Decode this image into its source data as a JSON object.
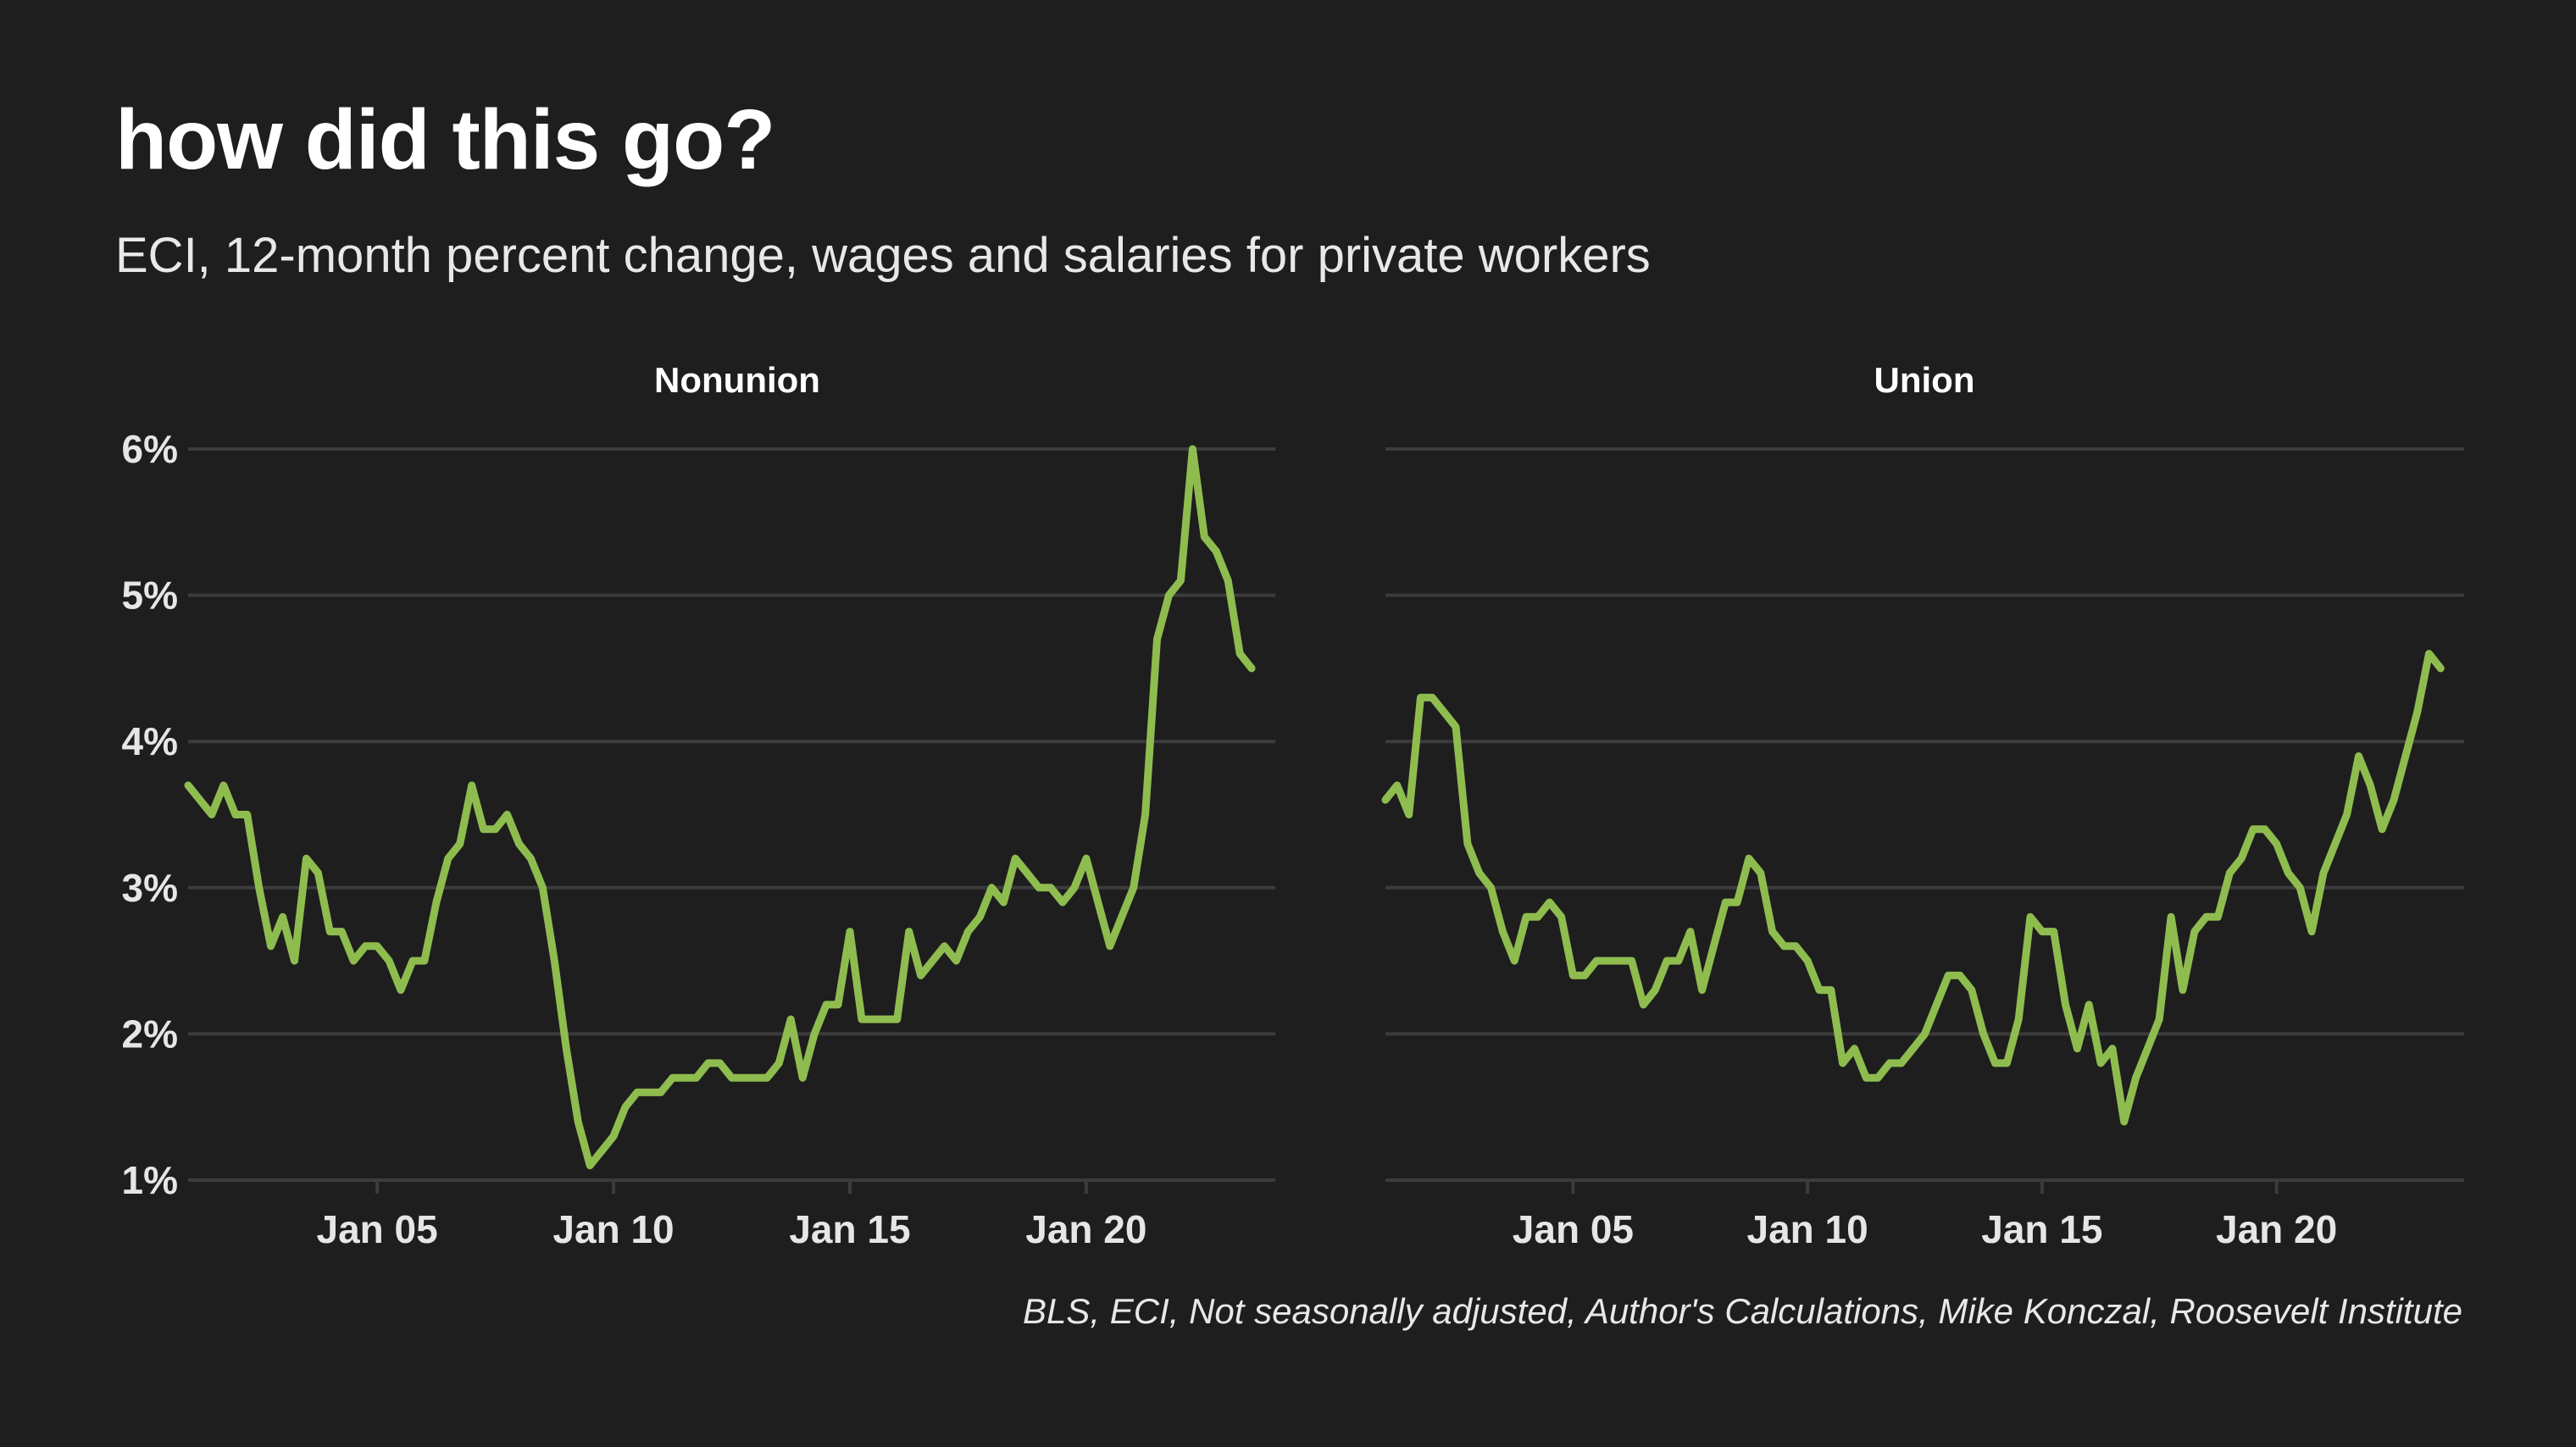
{
  "title": "how did this go?",
  "subtitle": "ECI, 12-month percent change, wages and salaries for private workers",
  "caption": "BLS, ECI, Not seasonally adjusted, Author's Calculations, Mike Konczal, Roosevelt Institute",
  "colors": {
    "background": "#1e1e1e",
    "line": "#8fbc4f",
    "grid": "#3c3c3c",
    "text": "#ffffff"
  },
  "chart_data": [
    {
      "type": "line",
      "title": "Nonunion",
      "xlabel": "",
      "ylabel": "",
      "x_start": 2001.0,
      "x_step": 0.25,
      "ylim": [
        1,
        6
      ],
      "xlim": [
        2001,
        2024
      ],
      "yticks": [
        1,
        2,
        3,
        4,
        5,
        6
      ],
      "ytick_labels": [
        "1%",
        "2%",
        "3%",
        "4%",
        "5%",
        "6%"
      ],
      "xticks": [
        2005,
        2010,
        2015,
        2020
      ],
      "xtick_labels": [
        "Jan 05",
        "Jan 10",
        "Jan 15",
        "Jan 20"
      ],
      "grid": true,
      "series": [
        {
          "values": [
            3.7,
            3.6,
            3.5,
            3.7,
            3.5,
            3.5,
            3.0,
            2.6,
            2.8,
            2.5,
            3.2,
            3.1,
            2.7,
            2.7,
            2.5,
            2.6,
            2.6,
            2.5,
            2.3,
            2.5,
            2.5,
            2.9,
            3.2,
            3.3,
            3.7,
            3.4,
            3.4,
            3.5,
            3.3,
            3.2,
            3.0,
            2.5,
            1.9,
            1.4,
            1.1,
            1.2,
            1.3,
            1.5,
            1.6,
            1.6,
            1.6,
            1.7,
            1.7,
            1.7,
            1.8,
            1.8,
            1.7,
            1.7,
            1.7,
            1.7,
            1.8,
            2.1,
            1.7,
            2.0,
            2.2,
            2.2,
            2.7,
            2.1,
            2.1,
            2.1,
            2.1,
            2.7,
            2.4,
            2.5,
            2.6,
            2.5,
            2.7,
            2.8,
            3.0,
            2.9,
            3.2,
            3.1,
            3.0,
            3.0,
            2.9,
            3.0,
            3.2,
            2.9,
            2.6,
            2.8,
            3.0,
            3.5,
            4.7,
            5.0,
            5.1,
            6.0,
            5.4,
            5.3,
            5.1,
            4.6,
            4.5
          ]
        }
      ]
    },
    {
      "type": "line",
      "title": "Union",
      "xlabel": "",
      "ylabel": "",
      "x_start": 2001.0,
      "x_step": 0.25,
      "ylim": [
        1,
        6
      ],
      "xlim": [
        2001,
        2024
      ],
      "yticks": [
        1,
        2,
        3,
        4,
        5,
        6
      ],
      "xticks": [
        2005,
        2010,
        2015,
        2020
      ],
      "xtick_labels": [
        "Jan 05",
        "Jan 10",
        "Jan 15",
        "Jan 20"
      ],
      "grid": true,
      "series": [
        {
          "values": [
            3.6,
            3.7,
            3.5,
            4.3,
            4.3,
            4.2,
            4.1,
            3.3,
            3.1,
            3.0,
            2.7,
            2.5,
            2.8,
            2.8,
            2.9,
            2.8,
            2.4,
            2.4,
            2.5,
            2.5,
            2.5,
            2.5,
            2.2,
            2.3,
            2.5,
            2.5,
            2.7,
            2.3,
            2.6,
            2.9,
            2.9,
            3.2,
            3.1,
            2.7,
            2.6,
            2.6,
            2.5,
            2.3,
            2.3,
            1.8,
            1.9,
            1.7,
            1.7,
            1.8,
            1.8,
            1.9,
            2.0,
            2.2,
            2.4,
            2.4,
            2.3,
            2.0,
            1.8,
            1.8,
            2.1,
            2.8,
            2.7,
            2.7,
            2.2,
            1.9,
            2.2,
            1.8,
            1.9,
            1.4,
            1.7,
            1.9,
            2.1,
            2.8,
            2.3,
            2.7,
            2.8,
            2.8,
            3.1,
            3.2,
            3.4,
            3.4,
            3.3,
            3.1,
            3.0,
            2.7,
            3.1,
            3.3,
            3.5,
            3.9,
            3.7,
            3.4,
            3.6,
            3.9,
            4.2,
            4.6,
            4.5
          ]
        }
      ]
    }
  ]
}
